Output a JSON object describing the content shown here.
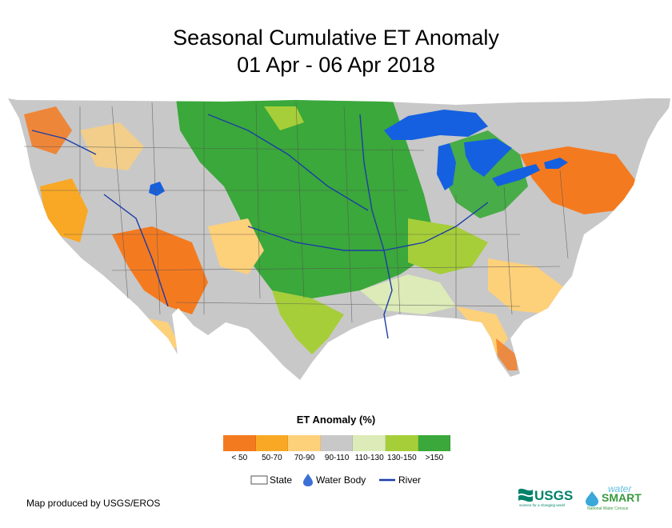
{
  "title_line1": "Seasonal Cumulative ET Anomaly",
  "title_line2": "01 Apr - 06 Apr 2018",
  "legend": {
    "title": "ET Anomaly (%)",
    "classes": [
      {
        "label": "< 50",
        "color": "#f47a20"
      },
      {
        "label": "50-70",
        "color": "#f9a825"
      },
      {
        "label": "70-90",
        "color": "#fdd07a"
      },
      {
        "label": "90-110",
        "color": "#c8c8c8"
      },
      {
        "label": "110-130",
        "color": "#dcebb8"
      },
      {
        "label": "130-150",
        "color": "#a6ce39"
      },
      {
        "label": ">150",
        "color": "#3aa83a"
      }
    ]
  },
  "reference": {
    "state_label": "State",
    "water_label": "Water Body",
    "river_label": "River"
  },
  "credit": "Map produced by USGS/EROS",
  "logos": {
    "usgs": "USGS",
    "usgs_tagline": "science for a changing world",
    "water": "water",
    "smart": "SMART",
    "census": "National Water Census"
  },
  "colors": {
    "water": "#1560e0",
    "state_border": "#555555",
    "river": "#1c3da8"
  }
}
